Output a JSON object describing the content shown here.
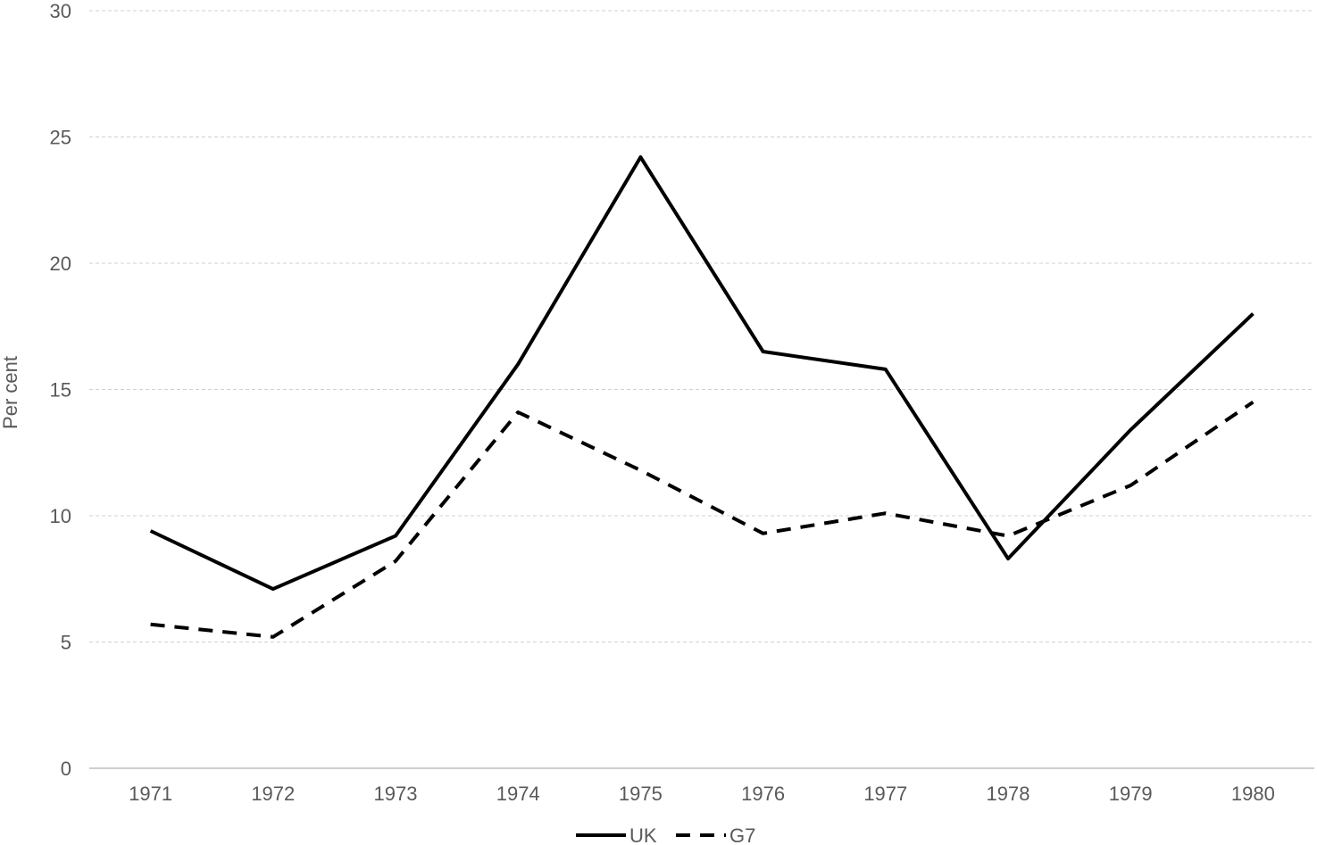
{
  "chart_data": {
    "type": "line",
    "title": "",
    "xlabel": "",
    "ylabel": "Per cent",
    "categories": [
      "1971",
      "1972",
      "1973",
      "1974",
      "1975",
      "1976",
      "1977",
      "1978",
      "1979",
      "1980"
    ],
    "ylim": [
      0,
      30
    ],
    "yticks": [
      "0",
      "5",
      "10",
      "15",
      "20",
      "25",
      "30"
    ],
    "grid": "horizontal dashed",
    "legend_position": "bottom-center",
    "series": [
      {
        "name": "UK",
        "style": "solid",
        "color": "#000000",
        "values": [
          9.4,
          7.1,
          9.2,
          16.0,
          24.2,
          16.5,
          15.8,
          8.3,
          13.4,
          18.0
        ]
      },
      {
        "name": "G7",
        "style": "dashed",
        "color": "#000000",
        "values": [
          5.7,
          5.2,
          8.2,
          14.1,
          11.8,
          9.3,
          10.1,
          9.2,
          11.2,
          14.5
        ]
      }
    ]
  }
}
